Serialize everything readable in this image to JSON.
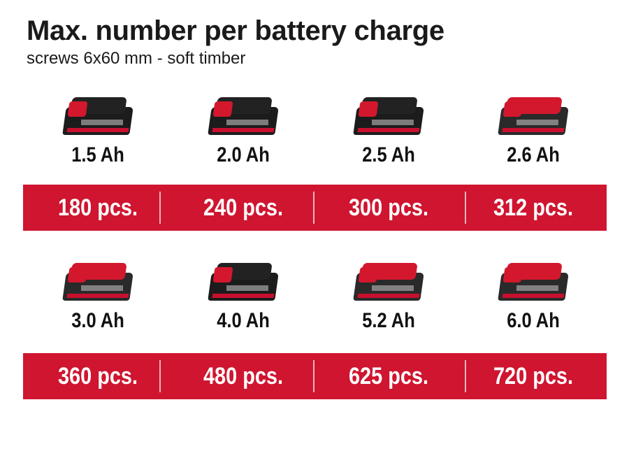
{
  "header": {
    "title": "Max. number per battery charge",
    "subtitle": "screws 6x60 mm - soft timber"
  },
  "accent_color": "#cf1530",
  "rows": [
    {
      "batteries": [
        {
          "capacity": "1.5 Ah",
          "count": "180 pcs.",
          "icon": "battery-pack-icon"
        },
        {
          "capacity": "2.0 Ah",
          "count": "240 pcs.",
          "icon": "battery-pack-icon"
        },
        {
          "capacity": "2.5 Ah",
          "count": "300 pcs.",
          "icon": "battery-pack-icon"
        },
        {
          "capacity": "2.6 Ah",
          "count": "312 pcs.",
          "icon": "battery-pack-icon"
        }
      ]
    },
    {
      "batteries": [
        {
          "capacity": "3.0 Ah",
          "count": "360 pcs.",
          "icon": "battery-pack-icon"
        },
        {
          "capacity": "4.0 Ah",
          "count": "480 pcs.",
          "icon": "battery-pack-icon"
        },
        {
          "capacity": "5.2 Ah",
          "count": "625 pcs.",
          "icon": "battery-pack-icon"
        },
        {
          "capacity": "6.0 Ah",
          "count": "720 pcs.",
          "icon": "battery-pack-icon"
        }
      ]
    }
  ]
}
